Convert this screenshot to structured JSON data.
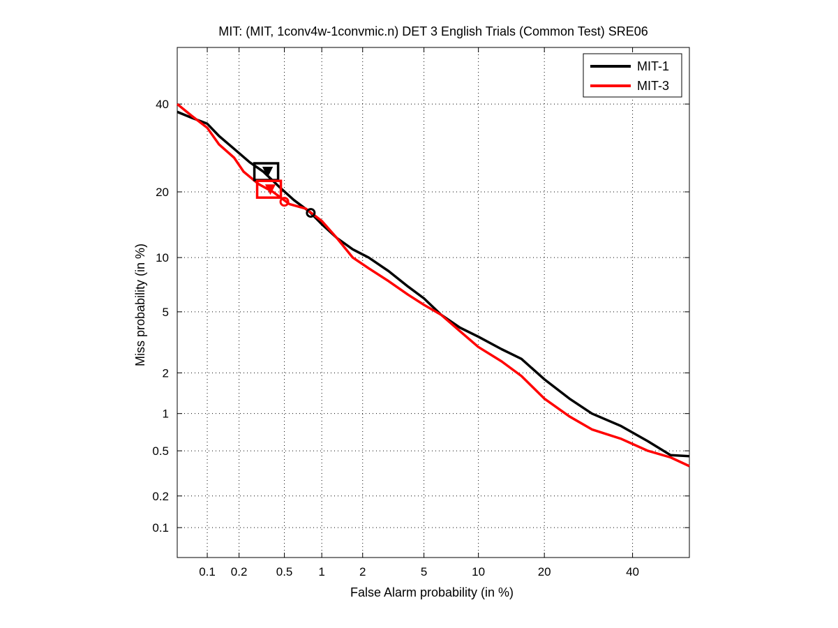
{
  "chart_data": {
    "type": "line",
    "title": "MIT: (MIT, 1conv4w-1convmic.n) DET 3 English Trials (Common Test) SRE06",
    "xlabel": "False Alarm probability (in %)",
    "ylabel": "Miss probability (in %)",
    "x_scale": "normal-deviate",
    "y_scale": "normal-deviate",
    "xlim": [
      0.05,
      55
    ],
    "ylim": [
      0.05,
      55
    ],
    "xticks": [
      0.1,
      0.2,
      0.5,
      1,
      2,
      5,
      10,
      20,
      40
    ],
    "xtick_labels": [
      "0.1",
      "0.2",
      "0.5",
      "1",
      "2",
      "5",
      "10",
      "20",
      "40"
    ],
    "yticks": [
      0.1,
      0.2,
      0.5,
      1,
      2,
      5,
      10,
      20,
      40
    ],
    "ytick_labels": [
      "0.1",
      "0.2",
      "0.5",
      "1",
      "2",
      "5",
      "10",
      "20",
      "40"
    ],
    "grid": true,
    "legend_position": "top-right",
    "series": [
      {
        "name": "MIT-1",
        "color": "#000000",
        "x": [
          0.05,
          0.07,
          0.1,
          0.13,
          0.18,
          0.25,
          0.33,
          0.45,
          0.6,
          0.8,
          1.0,
          1.3,
          1.7,
          2.2,
          3.0,
          4.0,
          5.0,
          6.3,
          8.0,
          10.0,
          13.0,
          16.0,
          20.0,
          25.0,
          30.0,
          37.0,
          44.0,
          50.0,
          55.0
        ],
        "y": [
          38.0,
          36.5,
          35.0,
          32.0,
          29.0,
          26.0,
          24.0,
          21.0,
          18.5,
          16.5,
          14.5,
          12.5,
          11.0,
          10.0,
          8.5,
          7.0,
          6.0,
          4.8,
          4.0,
          3.5,
          2.9,
          2.5,
          1.8,
          1.3,
          1.0,
          0.8,
          0.6,
          0.46,
          0.45
        ]
      },
      {
        "name": "MIT-3",
        "color": "#ff0000",
        "x": [
          0.05,
          0.07,
          0.1,
          0.13,
          0.18,
          0.22,
          0.3,
          0.4,
          0.55,
          0.75,
          1.0,
          1.3,
          1.7,
          2.2,
          3.0,
          4.0,
          5.0,
          6.3,
          8.0,
          10.0,
          13.0,
          16.0,
          20.0,
          25.0,
          30.0,
          37.0,
          44.0,
          50.0,
          55.0
        ],
        "y": [
          40.0,
          37.0,
          34.0,
          30.0,
          27.0,
          24.0,
          21.5,
          20.0,
          17.8,
          17.0,
          15.0,
          12.5,
          10.0,
          8.8,
          7.5,
          6.3,
          5.5,
          4.8,
          3.8,
          3.0,
          2.4,
          1.9,
          1.3,
          0.95,
          0.75,
          0.63,
          0.5,
          0.44,
          0.37
        ]
      }
    ],
    "markers": [
      {
        "series": "MIT-1",
        "shape": "square",
        "x": 0.35,
        "y": 24.0,
        "color": "#000000"
      },
      {
        "series": "MIT-1",
        "shape": "triangle",
        "x": 0.36,
        "y": 24.0,
        "color": "#000000"
      },
      {
        "series": "MIT-1",
        "shape": "circle",
        "x": 0.82,
        "y": 16.3,
        "color": "#000000"
      },
      {
        "series": "MIT-3",
        "shape": "square",
        "x": 0.37,
        "y": 20.5,
        "color": "#ff0000"
      },
      {
        "series": "MIT-3",
        "shape": "triangle",
        "x": 0.38,
        "y": 20.5,
        "color": "#ff0000"
      },
      {
        "series": "MIT-3",
        "shape": "circle",
        "x": 0.5,
        "y": 18.2,
        "color": "#ff0000"
      }
    ]
  }
}
